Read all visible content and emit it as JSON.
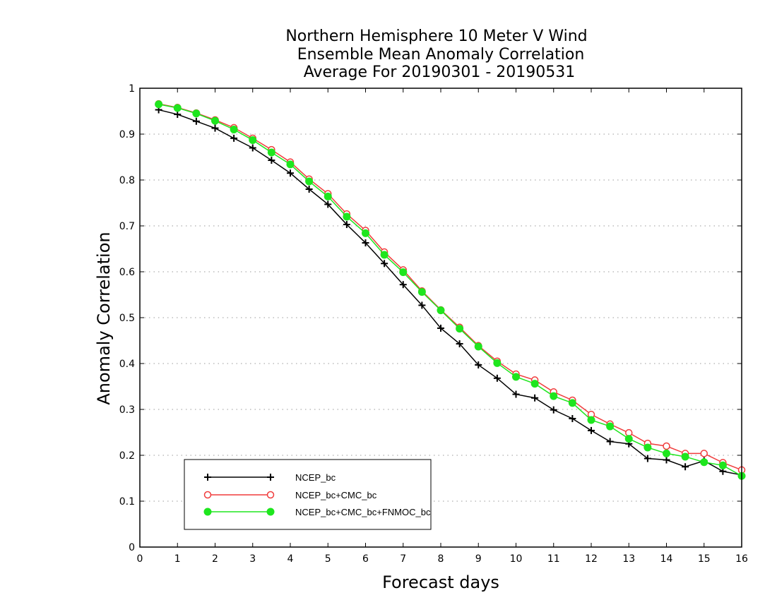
{
  "chart_data": {
    "type": "line",
    "title": [
      "Northern Hemisphere 10 Meter V Wind",
      "Ensemble Mean Anomaly Correlation",
      "Average For 20190301 - 20190531"
    ],
    "xlabel": "Forecast days",
    "ylabel": "Anomaly Correlation",
    "xlim": [
      0,
      16
    ],
    "ylim": [
      0,
      1
    ],
    "xticks": [
      0,
      1,
      2,
      3,
      4,
      5,
      6,
      7,
      8,
      9,
      10,
      11,
      12,
      13,
      14,
      15,
      16
    ],
    "yticks": [
      0,
      0.1,
      0.2,
      0.3,
      0.4,
      0.5,
      0.6,
      0.7,
      0.8,
      0.9,
      1
    ],
    "xtick_labels": [
      "0",
      "1",
      "2",
      "3",
      "4",
      "5",
      "6",
      "7",
      "8",
      "9",
      "10",
      "11",
      "12",
      "13",
      "14",
      "15",
      "16"
    ],
    "ytick_labels": [
      "0",
      "0.1",
      "0.2",
      "0.3",
      "0.4",
      "0.5",
      "0.6",
      "0.7",
      "0.8",
      "0.9",
      "1"
    ],
    "grid": "horizontal-dotted",
    "legend_position": "bottom-left",
    "x": [
      0.5,
      1.0,
      1.5,
      2.0,
      2.5,
      3.0,
      3.5,
      4.0,
      4.5,
      5.0,
      5.5,
      6.0,
      6.5,
      7.0,
      7.5,
      8.0,
      8.5,
      9.0,
      9.5,
      10.0,
      10.5,
      11.0,
      11.5,
      12.0,
      12.5,
      13.0,
      13.5,
      14.0,
      14.5,
      15.0,
      15.5,
      16.0
    ],
    "series": [
      {
        "name": "NCEP_bc",
        "color": "#000000",
        "marker": "plus",
        "values": [
          0.953,
          0.943,
          0.928,
          0.913,
          0.891,
          0.87,
          0.843,
          0.815,
          0.78,
          0.747,
          0.703,
          0.663,
          0.618,
          0.572,
          0.527,
          0.477,
          0.443,
          0.397,
          0.368,
          0.333,
          0.325,
          0.299,
          0.28,
          0.254,
          0.23,
          0.225,
          0.193,
          0.19,
          0.175,
          0.188,
          0.165,
          0.157
        ]
      },
      {
        "name": "NCEP_bc+CMC_bc",
        "color": "#f03c3c",
        "marker": "open-circle",
        "values": [
          0.966,
          0.958,
          0.946,
          0.931,
          0.914,
          0.891,
          0.866,
          0.839,
          0.802,
          0.77,
          0.726,
          0.69,
          0.643,
          0.604,
          0.558,
          0.517,
          0.479,
          0.439,
          0.405,
          0.377,
          0.364,
          0.338,
          0.32,
          0.289,
          0.268,
          0.249,
          0.226,
          0.22,
          0.204,
          0.204,
          0.184,
          0.168
        ]
      },
      {
        "name": "NCEP_bc+CMC_bc+FNMOC_bc",
        "color": "#1ee61e",
        "marker": "filled-circle",
        "values": [
          0.965,
          0.957,
          0.945,
          0.929,
          0.91,
          0.887,
          0.86,
          0.834,
          0.797,
          0.764,
          0.72,
          0.684,
          0.637,
          0.599,
          0.556,
          0.516,
          0.476,
          0.437,
          0.401,
          0.371,
          0.356,
          0.329,
          0.314,
          0.277,
          0.263,
          0.236,
          0.217,
          0.204,
          0.197,
          0.185,
          0.178,
          0.155
        ]
      }
    ]
  }
}
